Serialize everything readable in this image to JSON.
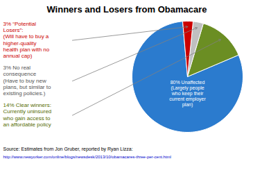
{
  "chart_data": {
    "type": "pie",
    "title": "Winners and Losers from Obamacare",
    "values": [
      80,
      14,
      3,
      3
    ],
    "colors": [
      "#2b7bce",
      "#6b8e23",
      "#c0c0c0",
      "#cc0000"
    ],
    "annotations": [
      {
        "text": "80% Unaffected\n(Largely people\nwho keep their\ncurrent employer\nplan)",
        "color": "#ffffff"
      },
      {
        "text": "14% Clear winners:\nCurrently uninsured\nwho gain access to\nan affordable policy",
        "color": "#556b00"
      },
      {
        "text": "3% No real\nconsequence\n(Have to buy new\nplans, but similar to\nexisting policies.)",
        "color": "#555555"
      },
      {
        "text": "3% “Potential\nLosers”:\n(Will have to buy a\nhigher-quality\nhealth plan with no\nannual cap)",
        "color": "#cc0000"
      },
      {
        "text": "Source: Estimates from Jon Gruber, reported by Ryan Lizza:",
        "color": "#000000"
      },
      {
        "text": "http://www.newyorker.com/online/blogs/newsdesk/2013/10/obamacares-three-per-cent.html",
        "color": "#0000cc"
      }
    ]
  }
}
